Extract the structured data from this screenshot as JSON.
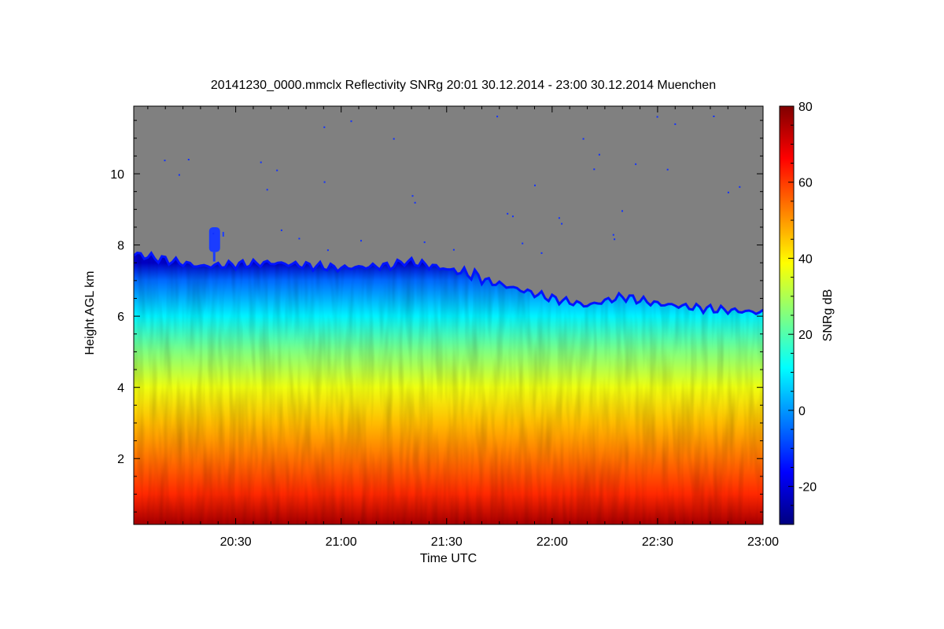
{
  "chart_data": {
    "type": "heatmap",
    "title": "20141230_0000.mmclx Reflectivity SNRg   20:01 30.12.2014 - 23:00 30.12.2014 Muenchen",
    "xlabel": "Time UTC",
    "ylabel": "Height AGL km",
    "colorbar_label": "SNRg dB",
    "x_range": [
      "20:01",
      "23:00"
    ],
    "x_ticks": [
      "20:30",
      "21:00",
      "21:30",
      "22:00",
      "22:30",
      "23:00"
    ],
    "y_range_km": [
      0.15,
      11.9
    ],
    "y_ticks": [
      "2",
      "4",
      "6",
      "8",
      "10"
    ],
    "colorbar_range": [
      -30,
      80
    ],
    "colorbar_ticks": [
      "-20",
      "0",
      "20",
      "40",
      "60",
      "80"
    ],
    "colormap": [
      "#00007f",
      "#0000ff",
      "#0080ff",
      "#00ffff",
      "#80ff80",
      "#ffff00",
      "#ff8000",
      "#ff0000",
      "#7f0000"
    ],
    "no_signal_color": "#808080",
    "cloud_top_km": [
      {
        "time": "20:01",
        "height": 7.75
      },
      {
        "time": "20:20",
        "height": 7.4
      },
      {
        "time": "20:40",
        "height": 7.5
      },
      {
        "time": "21:00",
        "height": 7.35
      },
      {
        "time": "21:20",
        "height": 7.45
      },
      {
        "time": "21:35",
        "height": 7.15
      },
      {
        "time": "21:45",
        "height": 6.9
      },
      {
        "time": "22:00",
        "height": 6.5
      },
      {
        "time": "22:10",
        "height": 6.3
      },
      {
        "time": "22:20",
        "height": 6.55
      },
      {
        "time": "22:30",
        "height": 6.35
      },
      {
        "time": "22:45",
        "height": 6.2
      },
      {
        "time": "23:00",
        "height": 6.1
      }
    ],
    "isolated_feature": {
      "time": "20:24",
      "height_range_km": [
        7.8,
        8.5
      ]
    },
    "snr_profile": [
      {
        "height": 0.2,
        "snr": 75
      },
      {
        "height": 1.0,
        "snr": 62
      },
      {
        "height": 2.0,
        "snr": 54
      },
      {
        "height": 3.0,
        "snr": 46
      },
      {
        "height": 4.0,
        "snr": 37
      },
      {
        "height": 5.0,
        "snr": 25
      },
      {
        "height": 6.0,
        "snr": 10
      },
      {
        "height": 7.0,
        "snr": -5
      },
      {
        "height": 7.5,
        "snr": -22
      }
    ]
  }
}
